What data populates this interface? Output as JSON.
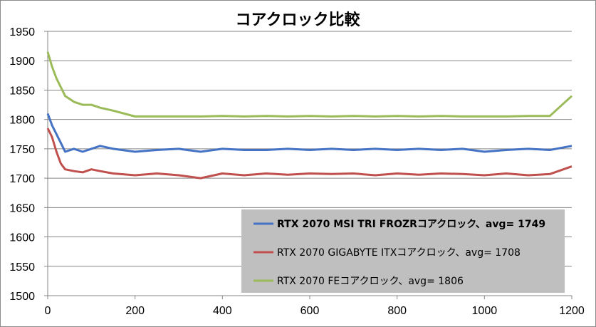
{
  "chart_data": {
    "type": "line",
    "title": "コアクロック比較",
    "xlabel": "",
    "ylabel": "",
    "xlim": [
      0,
      1200
    ],
    "ylim": [
      1500,
      1950
    ],
    "x_ticks": [
      0,
      200,
      400,
      600,
      800,
      1000,
      1200
    ],
    "y_ticks": [
      1500,
      1550,
      1600,
      1650,
      1700,
      1750,
      1800,
      1850,
      1900,
      1950
    ],
    "grid": true,
    "legend_position": "bottom-right",
    "series": [
      {
        "name": "RTX 2070 MSI TRI FROZRコアクロック、avg= 1749",
        "color": "#4472c4",
        "bold": true,
        "x": [
          0,
          10,
          20,
          30,
          40,
          60,
          80,
          100,
          120,
          150,
          200,
          250,
          300,
          350,
          400,
          450,
          500,
          550,
          600,
          650,
          700,
          750,
          800,
          850,
          900,
          950,
          1000,
          1050,
          1100,
          1150,
          1200
        ],
        "y": [
          1810,
          1790,
          1775,
          1760,
          1745,
          1750,
          1745,
          1750,
          1755,
          1750,
          1745,
          1748,
          1750,
          1745,
          1750,
          1748,
          1748,
          1750,
          1748,
          1750,
          1748,
          1750,
          1748,
          1750,
          1748,
          1750,
          1745,
          1748,
          1750,
          1748,
          1755
        ]
      },
      {
        "name": "RTX 2070 GIGABYTE ITXコアクロック、avg= 1708",
        "color": "#c0504d",
        "bold": false,
        "x": [
          0,
          10,
          20,
          30,
          40,
          60,
          80,
          100,
          120,
          150,
          200,
          250,
          300,
          350,
          400,
          450,
          500,
          550,
          600,
          650,
          700,
          750,
          800,
          850,
          900,
          950,
          1000,
          1050,
          1100,
          1150,
          1200
        ],
        "y": [
          1785,
          1770,
          1745,
          1725,
          1715,
          1712,
          1710,
          1715,
          1712,
          1708,
          1705,
          1708,
          1705,
          1700,
          1708,
          1705,
          1708,
          1706,
          1708,
          1707,
          1708,
          1705,
          1708,
          1706,
          1708,
          1707,
          1705,
          1708,
          1705,
          1707,
          1720
        ]
      },
      {
        "name": "RTX 2070 FEコアクロック、avg= 1806",
        "color": "#9bbb59",
        "bold": false,
        "x": [
          0,
          10,
          20,
          30,
          40,
          60,
          80,
          100,
          120,
          150,
          200,
          250,
          300,
          350,
          400,
          450,
          500,
          550,
          600,
          650,
          700,
          750,
          800,
          850,
          900,
          950,
          1000,
          1050,
          1100,
          1150,
          1200
        ],
        "y": [
          1915,
          1890,
          1870,
          1855,
          1840,
          1830,
          1825,
          1825,
          1820,
          1815,
          1805,
          1805,
          1805,
          1805,
          1806,
          1805,
          1806,
          1805,
          1806,
          1805,
          1806,
          1805,
          1806,
          1805,
          1806,
          1805,
          1805,
          1805,
          1806,
          1806,
          1840
        ]
      }
    ]
  }
}
